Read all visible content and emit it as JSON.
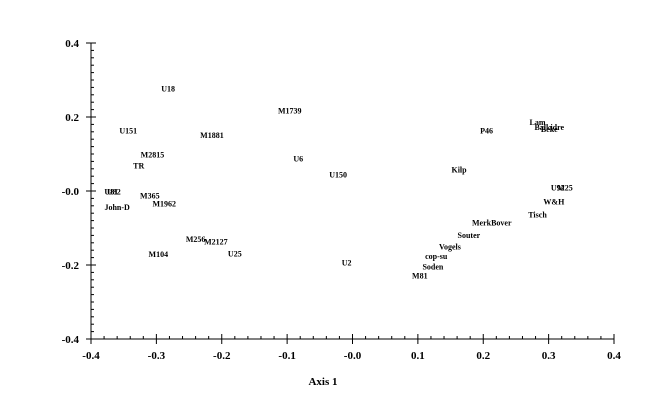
{
  "chart_data": {
    "type": "scatter",
    "title": "",
    "xlabel": "Axis 1",
    "ylabel": "",
    "xlim": [
      -0.4,
      0.4
    ],
    "ylim": [
      -0.4,
      0.4
    ],
    "grid": false,
    "colors": {
      "axis": "#000000",
      "text": "#000000",
      "background": "#ffffff"
    },
    "x_ticks": [
      {
        "value": -0.4,
        "label": "-0.4"
      },
      {
        "value": -0.3,
        "label": "-0.3"
      },
      {
        "value": -0.2,
        "label": "-0.2"
      },
      {
        "value": -0.1,
        "label": "-0.1"
      },
      {
        "value": 0.0,
        "label": "-0.0"
      },
      {
        "value": 0.1,
        "label": "0.1"
      },
      {
        "value": 0.2,
        "label": "0.2"
      },
      {
        "value": 0.3,
        "label": "0.3"
      },
      {
        "value": 0.4,
        "label": "0.4"
      }
    ],
    "y_ticks": [
      {
        "value": 0.4,
        "label": "0.4"
      },
      {
        "value": 0.2,
        "label": "0.2"
      },
      {
        "value": 0.0,
        "label": "-0.0"
      },
      {
        "value": -0.2,
        "label": "-0.2"
      },
      {
        "value": -0.4,
        "label": "-0.4"
      }
    ],
    "points": [
      {
        "label": "U18",
        "x": -0.282,
        "y": 0.277
      },
      {
        "label": "M1739",
        "x": -0.096,
        "y": 0.217
      },
      {
        "label": "U151",
        "x": -0.343,
        "y": 0.163
      },
      {
        "label": "M1881",
        "x": -0.215,
        "y": 0.151
      },
      {
        "label": "M2815",
        "x": -0.306,
        "y": 0.098
      },
      {
        "label": "TR",
        "x": -0.327,
        "y": 0.069
      },
      {
        "label": "U6",
        "x": -0.083,
        "y": 0.088
      },
      {
        "label": "U150",
        "x": -0.022,
        "y": 0.045
      },
      {
        "label": "U82",
        "x": -0.365,
        "y": -0.002
      },
      {
        "label": "U81",
        "x": -0.369,
        "y": -0.002
      },
      {
        "label": "M365",
        "x": -0.31,
        "y": -0.012
      },
      {
        "label": "M1962",
        "x": -0.288,
        "y": -0.034
      },
      {
        "label": "John-D",
        "x": -0.36,
        "y": -0.043
      },
      {
        "label": "M256",
        "x": -0.24,
        "y": -0.13
      },
      {
        "label": "M2127",
        "x": -0.209,
        "y": -0.137
      },
      {
        "label": "M104",
        "x": -0.297,
        "y": -0.17
      },
      {
        "label": "U25",
        "x": -0.18,
        "y": -0.169
      },
      {
        "label": "U2",
        "x": -0.009,
        "y": -0.193
      },
      {
        "label": "P46",
        "x": 0.205,
        "y": 0.163
      },
      {
        "label": "Lam",
        "x": 0.283,
        "y": 0.186
      },
      {
        "label": "Balkidre",
        "x": 0.301,
        "y": 0.173
      },
      {
        "label": "Beke",
        "x": 0.301,
        "y": 0.168
      },
      {
        "label": "Kilp",
        "x": 0.163,
        "y": 0.058
      },
      {
        "label": "U92",
        "x": 0.314,
        "y": 0.01
      },
      {
        "label": "M25",
        "x": 0.325,
        "y": 0.01
      },
      {
        "label": "W&H",
        "x": 0.308,
        "y": -0.028
      },
      {
        "label": "Tisch",
        "x": 0.283,
        "y": -0.063
      },
      {
        "label": "MerkBover",
        "x": 0.213,
        "y": -0.085
      },
      {
        "label": "Souter",
        "x": 0.178,
        "y": -0.119
      },
      {
        "label": "Vogels",
        "x": 0.149,
        "y": -0.15
      },
      {
        "label": "cop-su",
        "x": 0.128,
        "y": -0.176
      },
      {
        "label": "Soden",
        "x": 0.123,
        "y": -0.204
      },
      {
        "label": "M81",
        "x": 0.103,
        "y": -0.229
      }
    ]
  }
}
